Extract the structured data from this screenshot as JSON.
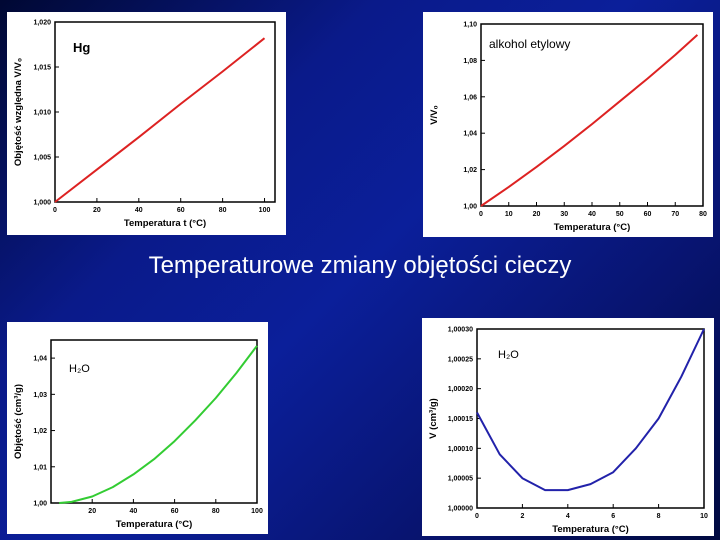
{
  "slide": {
    "title": "Temperaturowe zmiany objętości cieczy"
  },
  "chart_data": [
    {
      "type": "line",
      "label": "Hg",
      "xlabel": "Temperatura t (°C)",
      "ylabel": "Objętość względna V/V₀",
      "xlim": [
        0,
        105
      ],
      "ylim": [
        1.0,
        1.02
      ],
      "xticks": [
        "0",
        "20",
        "40",
        "60",
        "80",
        "100"
      ],
      "yticks": [
        "1,000",
        "1,005",
        "1,010",
        "1,015",
        "1,020"
      ],
      "color": "#dd2222",
      "series": [
        {
          "x": [
            0,
            20,
            40,
            60,
            80,
            100
          ],
          "y": [
            1.0,
            1.0036,
            1.0072,
            1.0109,
            1.0145,
            1.0182
          ]
        }
      ]
    },
    {
      "type": "line",
      "label": "alkohol etylowy",
      "xlabel": "Temperatura (°C)",
      "ylabel": "V/V₀",
      "xlim": [
        0,
        80
      ],
      "ylim": [
        1.0,
        1.1
      ],
      "xticks": [
        "0",
        "10",
        "20",
        "30",
        "40",
        "50",
        "60",
        "70",
        "80"
      ],
      "yticks": [
        "1,00",
        "1,02",
        "1,04",
        "1,06",
        "1,08",
        "1,10"
      ],
      "color": "#dd2222",
      "series": [
        {
          "x": [
            0,
            10,
            20,
            30,
            40,
            50,
            60,
            70,
            78
          ],
          "y": [
            1.0,
            1.0105,
            1.0215,
            1.033,
            1.045,
            1.0575,
            1.07,
            1.083,
            1.094
          ]
        }
      ]
    },
    {
      "type": "line",
      "label": "H₂O",
      "xlabel": "Temperatura (°C)",
      "ylabel": "Objętość (cm³/g)",
      "xlim": [
        0,
        100
      ],
      "ylim": [
        1.0,
        1.045
      ],
      "xticks": [
        "20",
        "40",
        "60",
        "80",
        "100"
      ],
      "yticks": [
        "1,00",
        "1,01",
        "1,02",
        "1,03",
        "1,04"
      ],
      "color": "#33cc33",
      "series": [
        {
          "x": [
            4,
            10,
            20,
            30,
            40,
            50,
            60,
            70,
            80,
            90,
            100
          ],
          "y": [
            1.0,
            1.0003,
            1.0018,
            1.0044,
            1.0079,
            1.0121,
            1.0171,
            1.0228,
            1.029,
            1.0359,
            1.0434
          ]
        }
      ]
    },
    {
      "type": "line",
      "label": "H₂O",
      "xlabel": "Temperatura (°C)",
      "ylabel": "V (cm³/g)",
      "xlim": [
        0,
        10
      ],
      "ylim": [
        1.0,
        1.0003
      ],
      "xticks": [
        "0",
        "2",
        "4",
        "6",
        "8",
        "10"
      ],
      "yticks": [
        "1,00000",
        "1,00005",
        "1,00010",
        "1,00015",
        "1,00020",
        "1,00025",
        "1,00030"
      ],
      "color": "#2222aa",
      "series": [
        {
          "x": [
            0,
            1,
            2,
            3,
            4,
            5,
            6,
            7,
            8,
            9,
            10
          ],
          "y": [
            1.00016,
            1.00009,
            1.00005,
            1.00003,
            1.00003,
            1.00004,
            1.00006,
            1.0001,
            1.00015,
            1.00022,
            1.0003
          ]
        }
      ]
    }
  ]
}
